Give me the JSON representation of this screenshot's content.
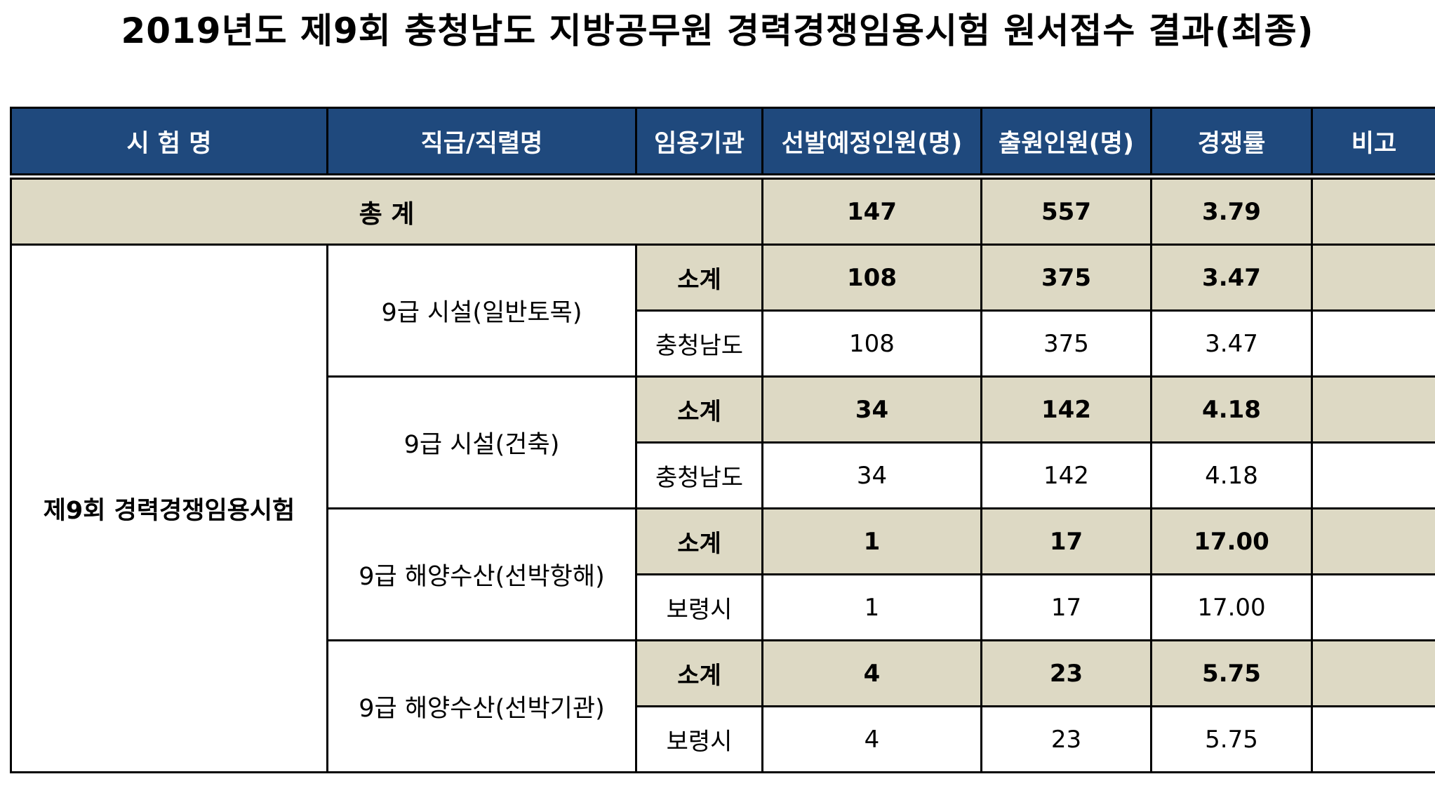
{
  "title": "2019년도 제9회 충청남도 지방공무원 경력경쟁임용시험 원서접수 결과(최종)",
  "headers": {
    "exam": "시 험 명",
    "grade": "직급/직렬명",
    "agency": "임용기관",
    "planned": "선발예정인원(명)",
    "applicants": "출원인원(명)",
    "rate": "경쟁률",
    "note": "비고"
  },
  "total": {
    "label": "총 계",
    "planned": "147",
    "applicants": "557",
    "rate": "3.79",
    "note": ""
  },
  "exam_name": "제9회 경력경쟁임용시험",
  "groups": [
    {
      "grade": "9급 시설(일반토목)",
      "subtotal": {
        "label": "소계",
        "planned": "108",
        "applicants": "375",
        "rate": "3.47",
        "note": ""
      },
      "detail": {
        "agency": "충청남도",
        "planned": "108",
        "applicants": "375",
        "rate": "3.47",
        "note": ""
      }
    },
    {
      "grade": "9급 시설(건축)",
      "subtotal": {
        "label": "소계",
        "planned": "34",
        "applicants": "142",
        "rate": "4.18",
        "note": ""
      },
      "detail": {
        "agency": "충청남도",
        "planned": "34",
        "applicants": "142",
        "rate": "4.18",
        "note": ""
      }
    },
    {
      "grade": "9급 해양수산(선박항해)",
      "subtotal": {
        "label": "소계",
        "planned": "1",
        "applicants": "17",
        "rate": "17.00",
        "note": ""
      },
      "detail": {
        "agency": "보령시",
        "planned": "1",
        "applicants": "17",
        "rate": "17.00",
        "note": ""
      }
    },
    {
      "grade": "9급 해양수산(선박기관)",
      "subtotal": {
        "label": "소계",
        "planned": "4",
        "applicants": "23",
        "rate": "5.75",
        "note": ""
      },
      "detail": {
        "agency": "보령시",
        "planned": "4",
        "applicants": "23",
        "rate": "5.75",
        "note": ""
      }
    }
  ]
}
